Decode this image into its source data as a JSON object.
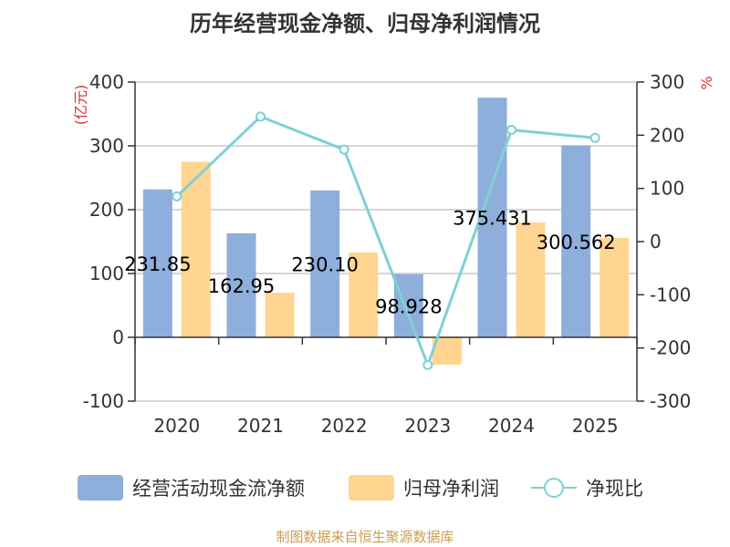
{
  "chart_data": {
    "type": "bar",
    "title": "历年经营现金净额、归母净利润情况",
    "categories": [
      "2020",
      "2021",
      "2022",
      "2023",
      "2024",
      "2025"
    ],
    "left_axis": {
      "unit": "(亿元)",
      "ylim": [
        -100,
        400
      ],
      "ticks": [
        "400",
        "300",
        "200",
        "100",
        "0",
        "-100"
      ],
      "tick_values": [
        400,
        300,
        200,
        100,
        0,
        -100
      ]
    },
    "right_axis": {
      "unit": "%",
      "ylim": [
        -300,
        300
      ],
      "ticks": [
        "300",
        "200",
        "100",
        "0",
        "-100",
        "-200",
        "-300"
      ],
      "tick_values": [
        300,
        200,
        100,
        0,
        -100,
        -200,
        -300
      ]
    },
    "series": [
      {
        "name": "经营活动现金流净额",
        "type": "bar",
        "axis": "left",
        "color": "#8eaedb",
        "values": [
          231.85,
          162.95,
          230.1,
          98.928,
          375.431,
          300.562
        ],
        "labels": [
          "231.85",
          "162.95",
          "230.10",
          "98.928",
          "375.431",
          "300.562"
        ]
      },
      {
        "name": "归母净利润",
        "type": "bar",
        "axis": "left",
        "color": "#ffd591",
        "values": [
          275,
          70,
          133,
          -43,
          180,
          156
        ]
      },
      {
        "name": "净现比",
        "type": "line",
        "axis": "right",
        "color": "#7fd0d6",
        "values": [
          85,
          235,
          173,
          -232,
          210,
          195
        ]
      }
    ],
    "grid": true,
    "legend": "bottom",
    "source": "制图数据来自恒生聚源数据库"
  }
}
